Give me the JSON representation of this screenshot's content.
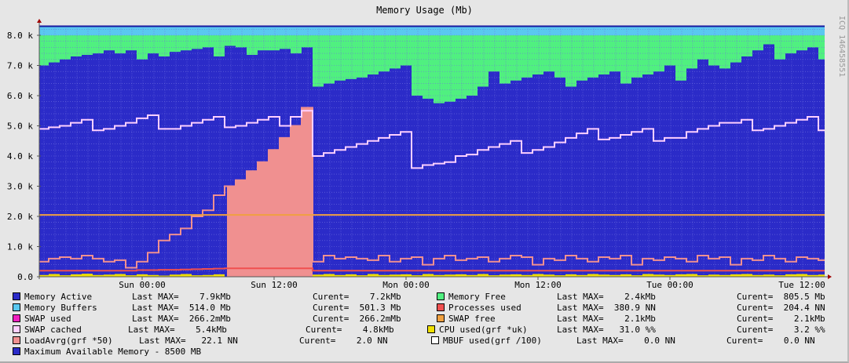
{
  "chart_data": {
    "type": "area",
    "title": "Memory Usage (Mb)",
    "watermark": "ICQ 146458551",
    "ylim": [
      0,
      8300
    ],
    "y_ticks": [
      "0.0",
      "1.0 k",
      "2.0 k",
      "3.0 k",
      "4.0 k",
      "5.0 k",
      "6.0 k",
      "7.0 k",
      "8.0 k"
    ],
    "x_ticks": [
      "Sun 00:00",
      "Sun 12:00",
      "Mon 00:00",
      "Mon 12:00",
      "Tue 00:00",
      "Tue 12:00"
    ],
    "grid": true,
    "x": [
      "Sat 15:00",
      "Sat 16:00",
      "Sat 17:00",
      "Sat 18:00",
      "Sat 19:00",
      "Sat 20:00",
      "Sat 21:00",
      "Sat 22:00",
      "Sat 23:00",
      "Sun 00:00",
      "Sun 01:00",
      "Sun 02:00",
      "Sun 03:00",
      "Sun 04:00",
      "Sun 05:00",
      "Sun 06:00",
      "Sun 07:00",
      "Sun 08:00",
      "Sun 09:00",
      "Sun 10:00",
      "Sun 11:00",
      "Sun 12:00",
      "Sun 13:00",
      "Sun 14:00",
      "Sun 15:00",
      "Sun 16:00",
      "Sun 17:00",
      "Sun 18:00",
      "Sun 19:00",
      "Sun 20:00",
      "Sun 21:00",
      "Sun 22:00",
      "Sun 23:00",
      "Mon 00:00",
      "Mon 01:00",
      "Mon 02:00",
      "Mon 03:00",
      "Mon 04:00",
      "Mon 05:00",
      "Mon 06:00",
      "Mon 07:00",
      "Mon 08:00",
      "Mon 09:00",
      "Mon 10:00",
      "Mon 11:00",
      "Mon 12:00",
      "Mon 13:00",
      "Mon 14:00",
      "Mon 15:00",
      "Mon 16:00",
      "Mon 17:00",
      "Mon 18:00",
      "Mon 19:00",
      "Mon 20:00",
      "Mon 21:00",
      "Mon 22:00",
      "Mon 23:00",
      "Tue 00:00",
      "Tue 01:00",
      "Tue 02:00",
      "Tue 03:00",
      "Tue 04:00",
      "Tue 05:00",
      "Tue 06:00",
      "Tue 07:00",
      "Tue 08:00",
      "Tue 09:00",
      "Tue 10:00",
      "Tue 11:00",
      "Tue 12:00",
      "Tue 13:00",
      "Tue 14:00"
    ],
    "series": [
      {
        "name": "Memory Active",
        "color": "#2b2bc8",
        "kind": "area",
        "values": [
          7000,
          7100,
          7200,
          7300,
          7350,
          7400,
          7500,
          7400,
          7500,
          7200,
          7400,
          7300,
          7450,
          7500,
          7550,
          7600,
          7300,
          7650,
          7600,
          7350,
          7500,
          7500,
          7550,
          7400,
          7600,
          6300,
          6400,
          6500,
          6550,
          6600,
          6700,
          6800,
          6900,
          7000,
          6000,
          5900,
          5750,
          5800,
          5900,
          6000,
          6300,
          6800,
          6400,
          6500,
          6600,
          6700,
          6800,
          6600,
          6300,
          6500,
          6600,
          6700,
          6800,
          6400,
          6600,
          6700,
          6800,
          7000,
          6500,
          6900,
          7200,
          7000,
          6900,
          7100,
          7300,
          7500,
          7700,
          7200,
          7400,
          7500,
          7600,
          7200
        ]
      },
      {
        "name": "Memory Free",
        "color": "#50f080",
        "kind": "stack_to",
        "value": 8000
      },
      {
        "name": "Memory Buffers",
        "color": "#5ac8f0",
        "kind": "stack_to",
        "value": 8300
      },
      {
        "name": "Maximum Available Memory - 8500 MB",
        "color": "#2b2bc8",
        "kind": "hline",
        "value": 8300
      },
      {
        "name": "SWAP cached",
        "color": "#ffd0ff",
        "kind": "line",
        "values": [
          4900,
          4950,
          5000,
          5100,
          5200,
          4850,
          4900,
          5000,
          5100,
          5250,
          5350,
          4900,
          4900,
          5000,
          5100,
          5200,
          5300,
          4950,
          5000,
          5100,
          5200,
          5300,
          5000,
          5300,
          5500,
          4000,
          4100,
          4200,
          4300,
          4400,
          4500,
          4600,
          4700,
          4800,
          3600,
          3700,
          3750,
          3800,
          4000,
          4050,
          4200,
          4300,
          4400,
          4500,
          4100,
          4200,
          4300,
          4450,
          4600,
          4750,
          4900,
          4550,
          4600,
          4700,
          4800,
          4900,
          4500,
          4600,
          4600,
          4800,
          4900,
          5000,
          5100,
          5100,
          5200,
          4850,
          4900,
          5000,
          5100,
          5200,
          5300,
          4850
        ]
      },
      {
        "name": "SWAP free",
        "color": "#f0a040",
        "kind": "hline",
        "value": 2050
      },
      {
        "name": "LoadAvrg(grf *50)",
        "color": "#f09090",
        "kind": "line",
        "filled_from": "Sun 08:00",
        "filled_to": "Sun 15:00",
        "values": [
          500,
          600,
          650,
          600,
          700,
          600,
          500,
          550,
          300,
          500,
          800,
          1200,
          1400,
          1600,
          2000,
          2200,
          2700,
          3000,
          3200,
          3500,
          3800,
          4200,
          4600,
          5000,
          5600,
          500,
          700,
          600,
          650,
          600,
          550,
          700,
          500,
          600,
          650,
          400,
          600,
          700,
          550,
          600,
          650,
          500,
          600,
          700,
          650,
          400,
          600,
          550,
          700,
          600,
          500,
          650,
          600,
          700,
          400,
          600,
          550,
          650,
          600,
          500,
          700,
          600,
          650,
          400,
          600,
          550,
          700,
          600,
          500,
          650,
          600,
          550
        ]
      },
      {
        "name": "Processes used",
        "color": "#f05050",
        "kind": "line",
        "values": [
          200,
          200,
          200,
          200,
          200,
          200,
          200,
          200,
          200,
          220,
          220,
          230,
          230,
          240,
          250,
          260,
          270,
          280,
          280,
          280,
          280,
          280,
          280,
          280,
          280,
          200,
          200,
          200,
          200,
          200,
          200,
          200,
          200,
          200,
          200,
          200,
          200,
          200,
          200,
          200,
          200,
          200,
          200,
          200,
          200,
          200,
          200,
          200,
          200,
          200,
          200,
          200,
          200,
          200,
          200,
          200,
          200,
          200,
          200,
          200,
          200,
          200,
          200,
          200,
          200,
          200,
          200,
          200,
          200,
          200,
          200,
          200
        ]
      },
      {
        "name": "CPU used(grf *uk)",
        "color": "#f0e000",
        "kind": "area",
        "values": [
          60,
          90,
          50,
          80,
          100,
          60,
          70,
          90,
          50,
          80,
          60,
          40,
          70,
          90,
          50,
          60,
          80,
          0,
          0,
          0,
          0,
          0,
          0,
          0,
          0,
          70,
          90,
          60,
          80,
          50,
          90,
          60,
          70,
          80,
          50,
          90,
          60,
          70,
          80,
          60,
          90,
          50,
          70,
          80,
          60,
          90,
          70,
          50,
          80,
          60,
          90,
          70,
          60,
          80,
          50,
          90,
          70,
          60,
          80,
          90,
          50,
          70,
          60,
          80,
          90,
          60,
          70,
          50,
          80,
          90,
          60,
          70
        ]
      },
      {
        "name": "SWAP used",
        "color": "#f020c0",
        "kind": "none"
      },
      {
        "name": "MBUF used(grf /100)",
        "color": "#ffffff",
        "kind": "none"
      }
    ]
  },
  "legend": [
    {
      "label": "Memory Active",
      "max": "Last MAX=    7.9kMb",
      "cur": "Curent=    7.2kMb",
      "color": "#2b2bc8"
    },
    {
      "label": "Memory Buffers",
      "max": "Last MAX=  514.0 Mb",
      "cur": "Curent=  501.3 Mb",
      "color": "#5ac8f0"
    },
    {
      "label": "SWAP used",
      "max": "Last MAX=  266.2mMb",
      "cur": "Curent=  266.2mMb",
      "color": "#f020c0"
    },
    {
      "label": "SWAP cached",
      "max": "Last MAX=    5.4kMb",
      "cur": "Curent=    4.8kMb",
      "color": "#ffd0ff"
    },
    {
      "label": "LoadAvrg(grf *50)",
      "max": "Last MAX=   22.1 NN",
      "cur": "Curent=    2.0 NN",
      "color": "#f09090"
    },
    {
      "label": "Maximum Available Memory - 8500 MB",
      "max": "",
      "cur": "",
      "color": "#2b2bc8"
    },
    {
      "label": "Memory Free",
      "max": "Last MAX=    2.4kMb",
      "cur": "Curent=  805.5 Mb",
      "color": "#50f080"
    },
    {
      "label": "Processes used",
      "max": "Last MAX=  380.9 NN",
      "cur": "Curent=  204.4 NN",
      "color": "#f05050"
    },
    {
      "label": "SWAP free",
      "max": "Last MAX=    2.1kMb",
      "cur": "Curent=    2.1kMb",
      "color": "#f0a040"
    },
    {
      "label": "CPU used(grf *uk)",
      "max": "Last MAX=   31.0 %%",
      "cur": "Curent=    3.2 %%",
      "color": "#f0e000"
    },
    {
      "label": "MBUF used(grf /100)",
      "max": "Last MAX=    0.0 NN",
      "cur": "Curent=    0.0 NN",
      "color": "#ffffff"
    }
  ]
}
